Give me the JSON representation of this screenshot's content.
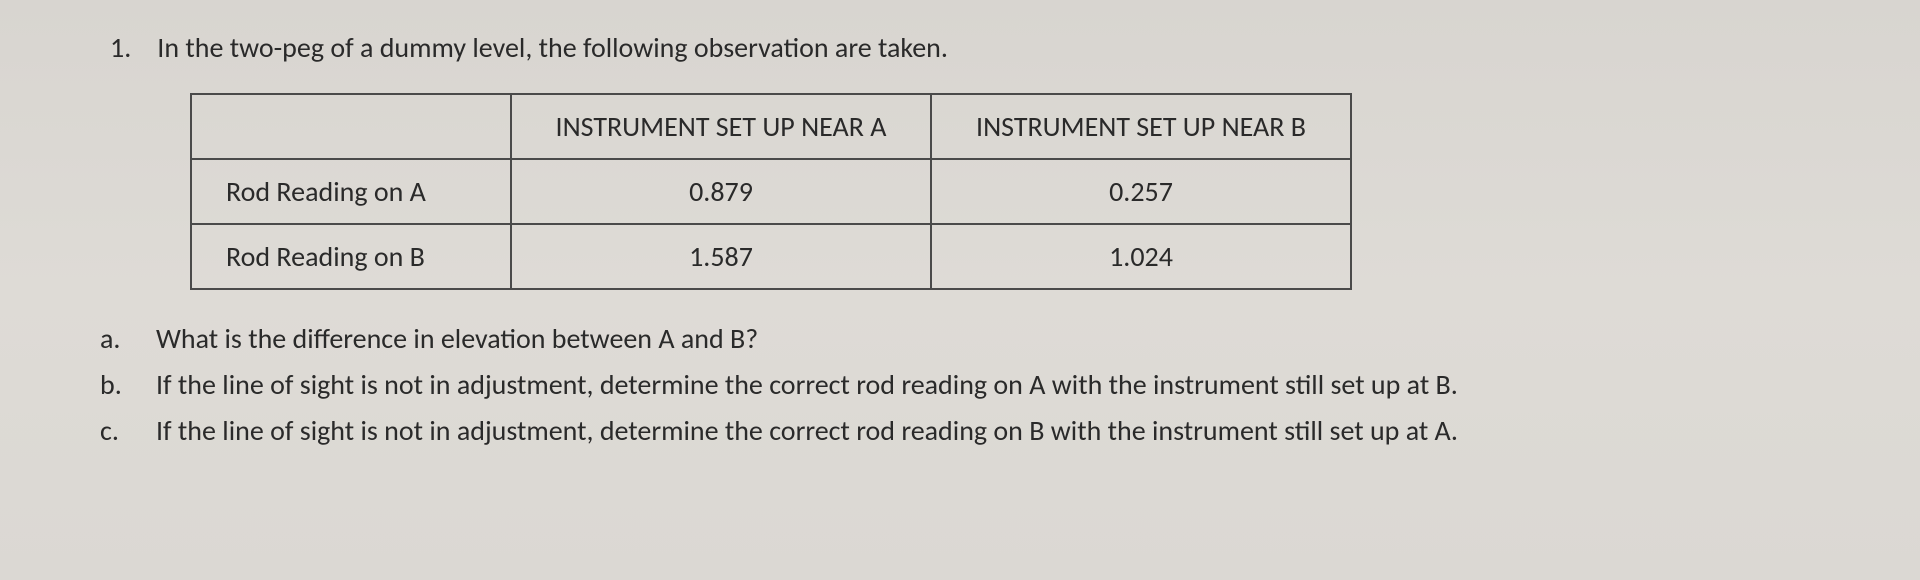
{
  "question": {
    "number": "1.",
    "text": "In the two-peg of a dummy level, the following observation are taken."
  },
  "table": {
    "header_blank": "",
    "header_a": "INSTRUMENT SET UP NEAR A",
    "header_b": "INSTRUMENT SET UP NEAR B",
    "row1_label": "Rod Reading on A",
    "row1_a": "0.879",
    "row1_b": "0.257",
    "row2_label": "Rod Reading on B",
    "row2_a": "1.587",
    "row2_b": "1.024",
    "col_widths": {
      "c0": 320,
      "c1": 420,
      "c2": 420
    },
    "border_color": "#4a4a4a",
    "text_color": "#2a2a2a",
    "background_color": "transparent"
  },
  "subparts": {
    "a_letter": "a.",
    "a_text": "What is the difference in elevation between A and B?",
    "b_letter": "b.",
    "b_text": "If the line of sight is not in adjustment, determine the correct rod reading on A with the instrument still set up at B.",
    "c_letter": "c.",
    "c_text": "If the line of sight is not in adjustment, determine the correct rod reading on B with the instrument still set up at A."
  },
  "styling": {
    "page_bg": "#dbd8d3",
    "font_family": "Calibri",
    "base_fontsize": 28
  }
}
